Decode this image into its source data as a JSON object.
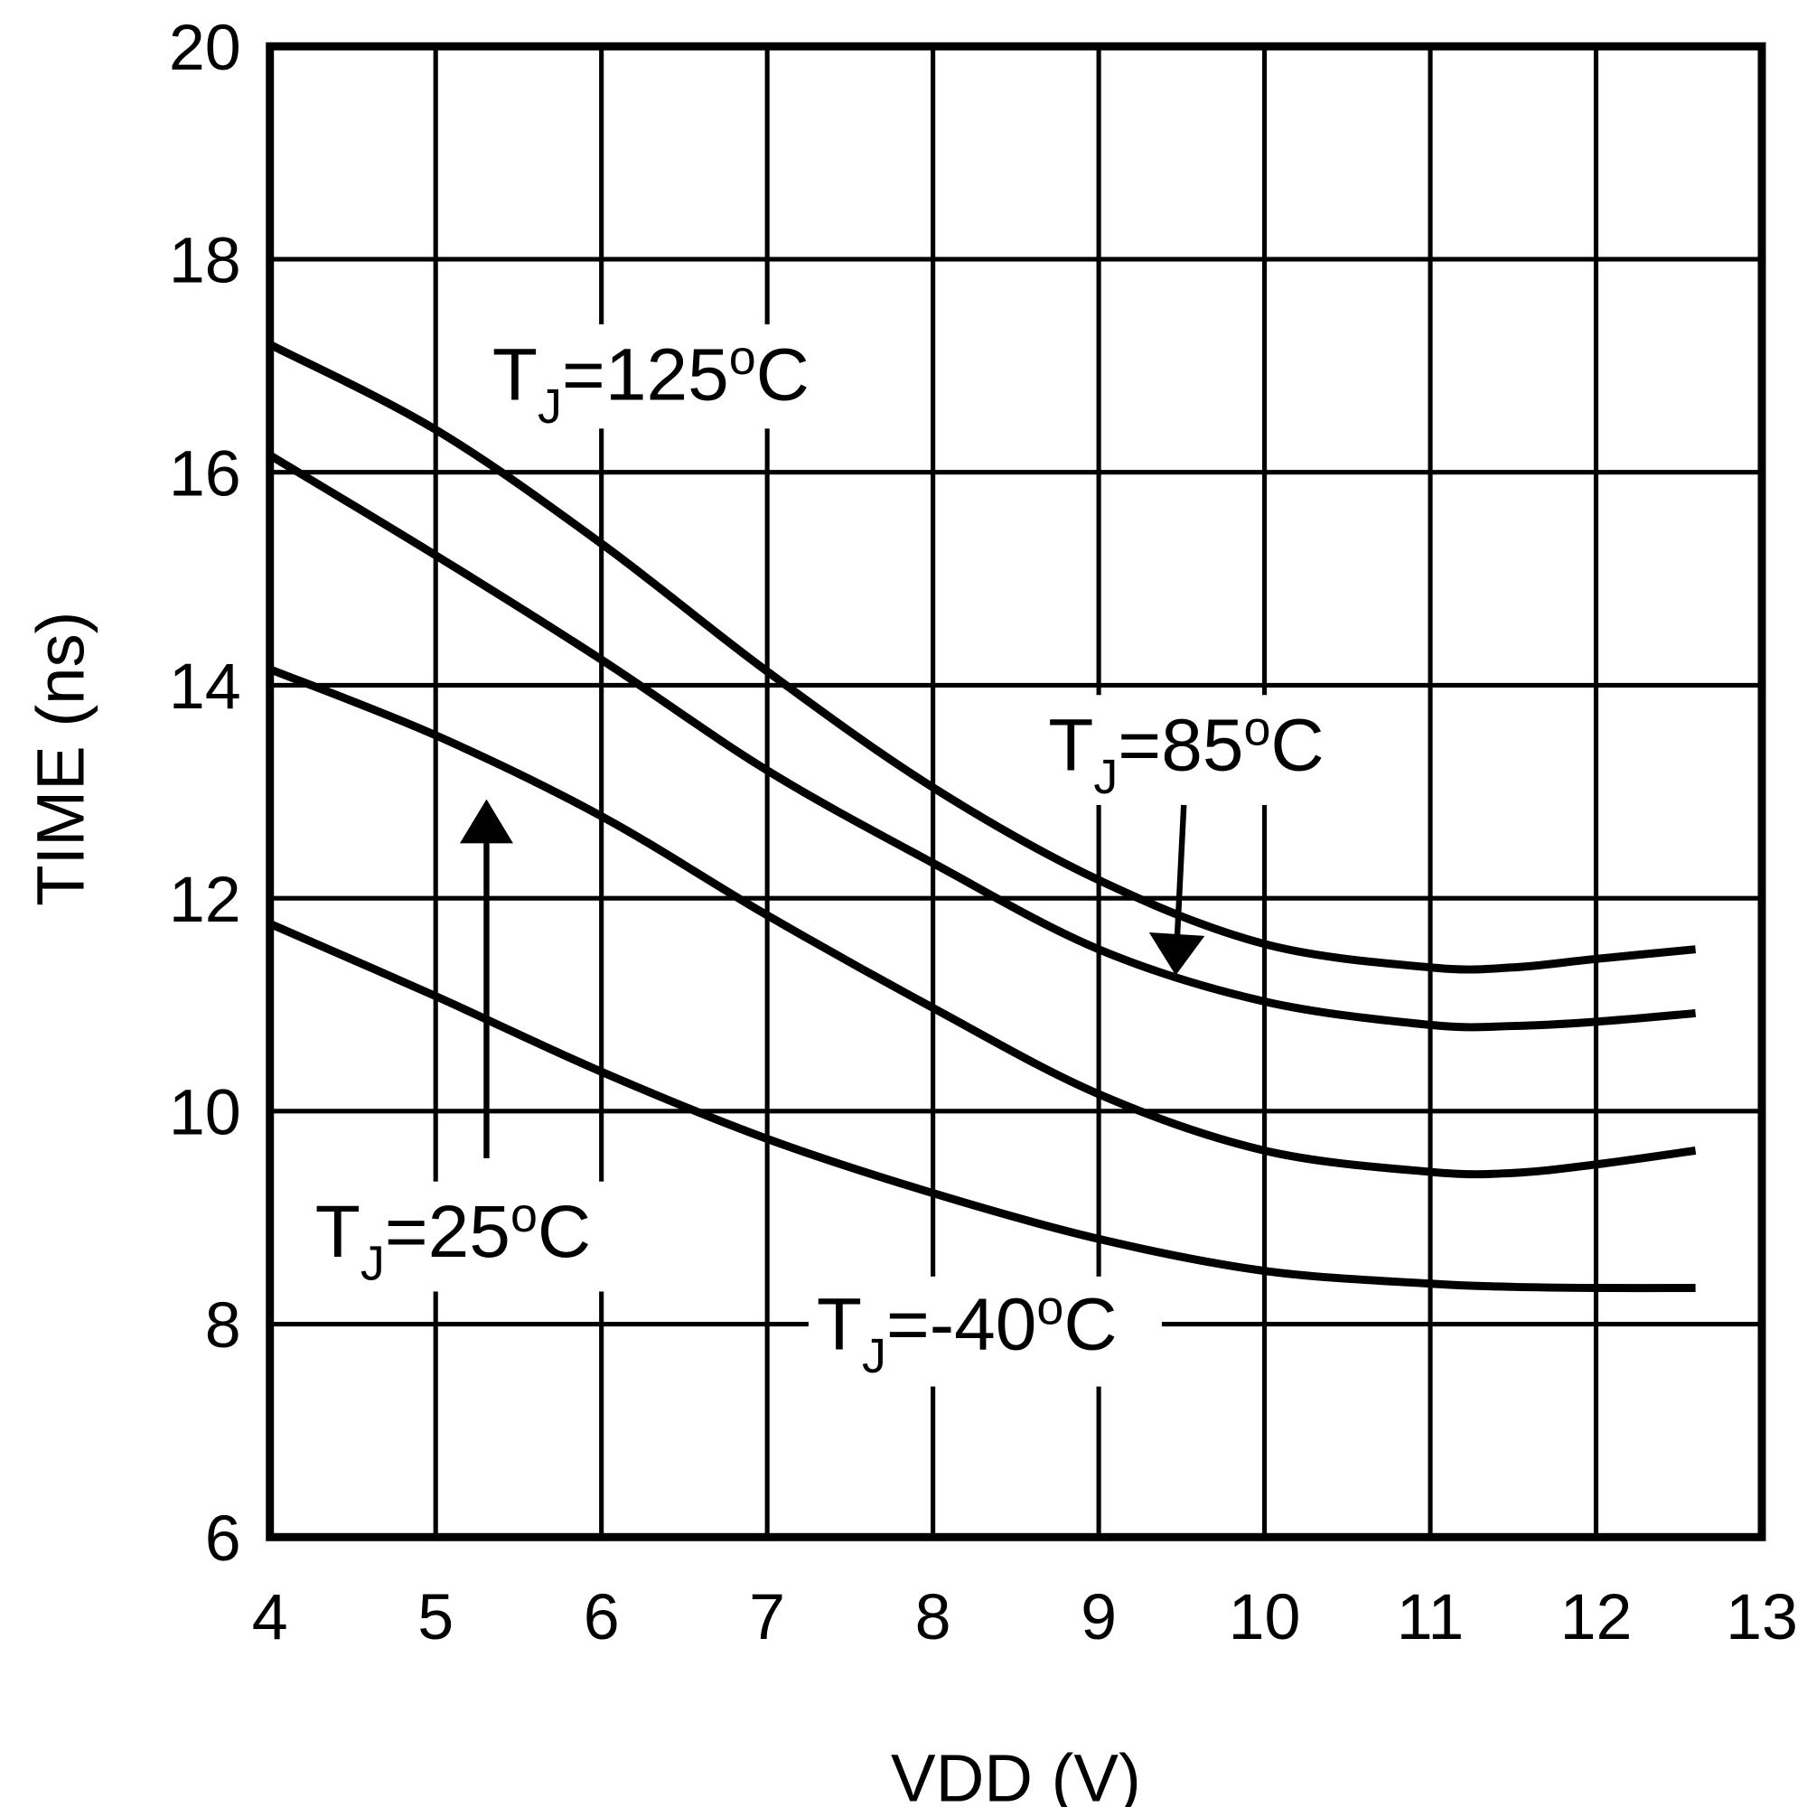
{
  "chart_data": {
    "type": "line",
    "xlabel": "VDD (V)",
    "ylabel": "TIME (ns)",
    "xlim": [
      4,
      13
    ],
    "ylim": [
      6,
      20
    ],
    "xticks": [
      "4",
      "5",
      "6",
      "7",
      "8",
      "9",
      "10",
      "11",
      "12",
      "13"
    ],
    "yticks": [
      "6",
      "8",
      "10",
      "12",
      "14",
      "16",
      "18",
      "20"
    ],
    "grid": true,
    "line_color": "#000000",
    "x": [
      4,
      5,
      6,
      7,
      8,
      9,
      10,
      11,
      11.5,
      12,
      12.6
    ],
    "series": [
      {
        "name": "TJ=125oC",
        "values": [
          17.2,
          16.4,
          15.33,
          14.13,
          13.04,
          12.17,
          11.57,
          11.35,
          11.35,
          11.43,
          11.52
        ],
        "label": {
          "t": "T",
          "sub": "J",
          "eq": "=125",
          "deg": "o",
          "unit": "C"
        }
      },
      {
        "name": "TJ=85oC",
        "values": [
          16.16,
          15.22,
          14.24,
          13.2,
          12.33,
          11.52,
          11.03,
          10.81,
          10.8,
          10.84,
          10.92
        ],
        "label": {
          "t": "T",
          "sub": "J",
          "eq": "=85",
          "deg": "o",
          "unit": "C"
        }
      },
      {
        "name": "TJ=25oC",
        "values": [
          14.15,
          13.53,
          12.77,
          11.84,
          10.97,
          10.16,
          9.63,
          9.43,
          9.42,
          9.5,
          9.63
        ],
        "label": {
          "t": "T",
          "sub": "J",
          "eq": "=25",
          "deg": "o",
          "unit": "C"
        }
      },
      {
        "name": "TJ=-40oC",
        "values": [
          11.76,
          11.08,
          10.37,
          9.74,
          9.23,
          8.8,
          8.5,
          8.38,
          8.35,
          8.34,
          8.34
        ],
        "label": {
          "t": "T",
          "sub": "J",
          "eq": "=-40",
          "deg": "o",
          "unit": "C"
        }
      }
    ]
  }
}
